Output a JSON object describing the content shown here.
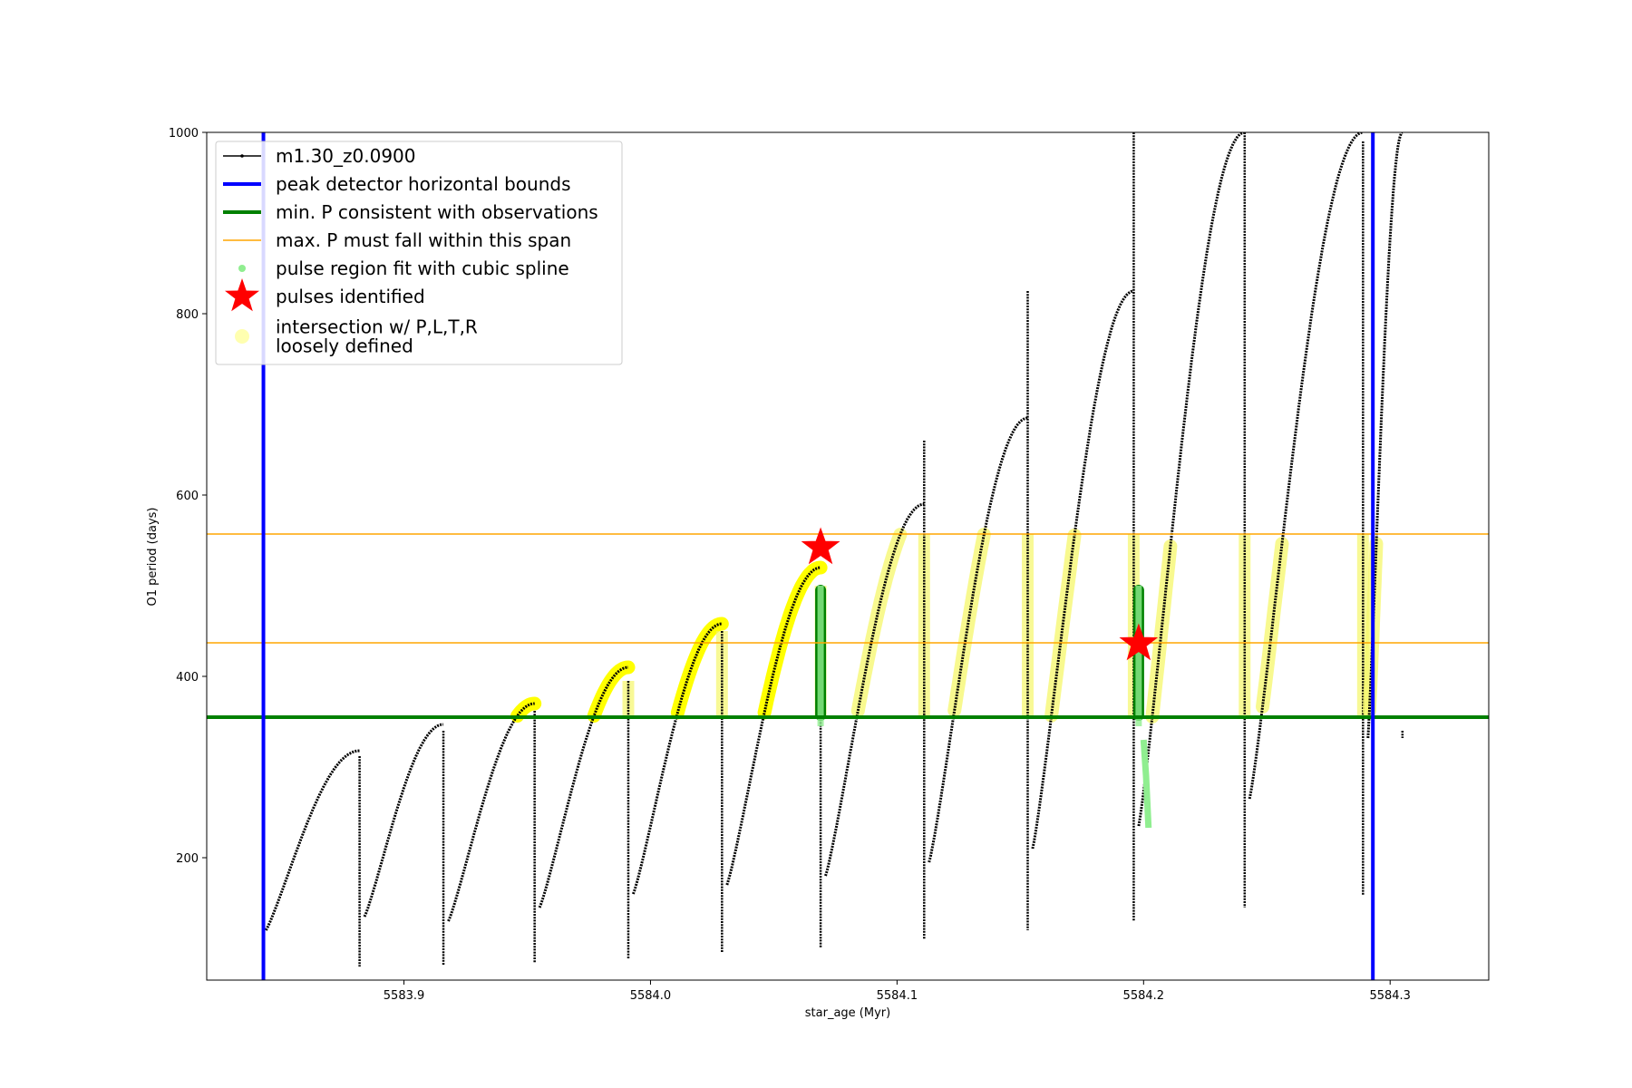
{
  "chart_data": {
    "type": "line",
    "title": "",
    "xlabel": "star_age (Myr)",
    "ylabel": "O1 period (days)",
    "xlim": [
      5583.82,
      5584.34
    ],
    "ylim": [
      65,
      1000
    ],
    "x_ticks": [
      5583.9,
      5584.0,
      5584.1,
      5584.2,
      5584.3
    ],
    "x_tick_labels": [
      "5583.9",
      "5584.0",
      "5584.1",
      "5584.2",
      "5584.3"
    ],
    "y_ticks": [
      200,
      400,
      600,
      800,
      1000
    ],
    "y_tick_labels": [
      "200",
      "400",
      "600",
      "800",
      "1000"
    ],
    "grid": false,
    "legend_position": "top-left",
    "legend": [
      {
        "label": "m1.30_z0.0900",
        "kind": "line-marker",
        "color": "#000000"
      },
      {
        "label": "peak detector horizontal bounds",
        "kind": "line",
        "color": "#0000ff"
      },
      {
        "label": "min. P consistent with observations",
        "kind": "line",
        "color": "#008000"
      },
      {
        "label": "max. P must fall within this span",
        "kind": "thin-line",
        "color": "#ffa500"
      },
      {
        "label": "pulse region fit with cubic spline",
        "kind": "dot",
        "color": "#90ee90"
      },
      {
        "label": "pulses identified",
        "kind": "star",
        "color": "#ff0000"
      },
      {
        "label": "intersection w/ P,L,T,R\nloosely defined",
        "kind": "dot-large",
        "color": "#ffffb0"
      }
    ],
    "vertical_bounds": [
      5583.843,
      5584.293
    ],
    "min_p": 355,
    "max_p_span": [
      437,
      557
    ],
    "stars": [
      {
        "x": 5584.069,
        "y": 542
      },
      {
        "x": 5584.198,
        "y": 436
      }
    ],
    "series": [
      {
        "name": "m1.30_z0.0900",
        "segments": [
          {
            "x0": 5583.844,
            "x1": 5583.882,
            "ymin": 120,
            "ymax": 318,
            "drop_to": 80,
            "drop_top": 312
          },
          {
            "x0": 5583.884,
            "x1": 5583.916,
            "ymin": 135,
            "ymax": 347,
            "drop_to": 82,
            "drop_top": 340
          },
          {
            "x0": 5583.918,
            "x1": 5583.953,
            "ymin": 130,
            "ymax": 370,
            "drop_to": 84,
            "drop_top": 362
          },
          {
            "x0": 5583.955,
            "x1": 5583.991,
            "ymin": 145,
            "ymax": 410,
            "drop_to": 88,
            "drop_top": 395
          },
          {
            "x0": 5583.993,
            "x1": 5584.029,
            "ymin": 160,
            "ymax": 458,
            "drop_to": 95,
            "drop_top": 450
          },
          {
            "x0": 5584.031,
            "x1": 5584.069,
            "ymin": 170,
            "ymax": 520,
            "drop_to": 100,
            "drop_top": 500
          },
          {
            "x0": 5584.071,
            "x1": 5584.111,
            "ymin": 180,
            "ymax": 590,
            "drop_to": 110,
            "drop_top": 660
          },
          {
            "x0": 5584.113,
            "x1": 5584.153,
            "ymin": 195,
            "ymax": 685,
            "drop_to": 120,
            "drop_top": 825
          },
          {
            "x0": 5584.155,
            "x1": 5584.196,
            "ymin": 210,
            "ymax": 825,
            "drop_to": 130,
            "drop_top": 1000
          },
          {
            "x0": 5584.198,
            "x1": 5584.241,
            "ymin": 235,
            "ymax": 1000,
            "drop_to": 145,
            "drop_top": 1000
          },
          {
            "x0": 5584.243,
            "x1": 5584.289,
            "ymin": 265,
            "ymax": 1000,
            "drop_to": 158,
            "drop_top": 990
          },
          {
            "x0": 5584.291,
            "x1": 5584.305,
            "ymin": 332,
            "ymax": 1000,
            "drop_to": 332,
            "drop_top": 340
          }
        ]
      }
    ]
  }
}
